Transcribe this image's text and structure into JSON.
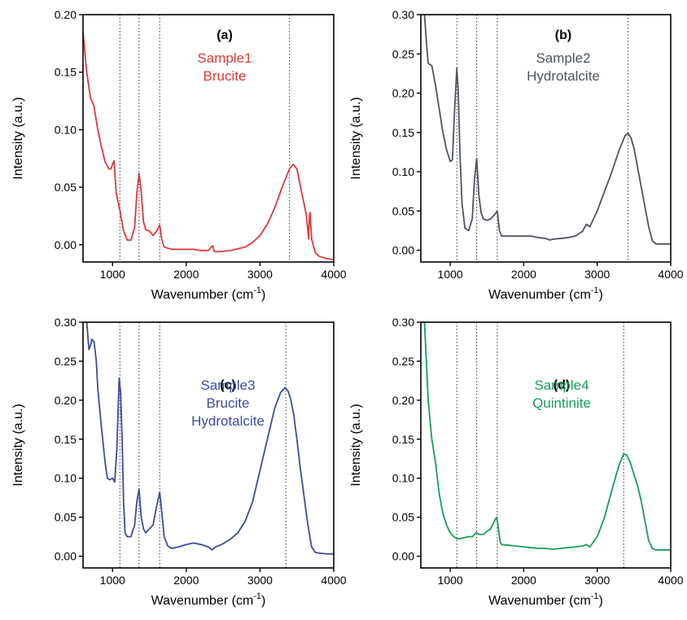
{
  "chart_data": [
    {
      "type": "line",
      "panel_label": "(a)",
      "annotation_lines": [
        "Sample1",
        "Brucite"
      ],
      "color": "#dc3a3a",
      "xlabel": "Wavenumber (cm",
      "xlabel_sup": "-1",
      "xlabel_end": ")",
      "ylabel": "Intensity (a.u.)",
      "xlim": [
        600,
        4000
      ],
      "ylim": [
        -0.015,
        0.2
      ],
      "xticks": [
        1000,
        2000,
        3000,
        4000
      ],
      "yticks": [
        0.0,
        0.05,
        0.1,
        0.15,
        0.2
      ],
      "ytick_labels": [
        "0.00",
        "0.05",
        "0.10",
        "0.15",
        "0.20"
      ],
      "reference_lines": [
        1100,
        1360,
        1640,
        3400
      ],
      "series": [
        {
          "x": [
            600,
            650,
            700,
            750,
            800,
            850,
            900,
            950,
            980,
            1000,
            1020,
            1050,
            1100,
            1150,
            1200,
            1250,
            1300,
            1330,
            1360,
            1390,
            1420,
            1450,
            1500,
            1550,
            1600,
            1640,
            1670,
            1700,
            1800,
            1900,
            2000,
            2100,
            2200,
            2300,
            2340,
            2360,
            2380,
            2450,
            2600,
            2800,
            2900,
            3000,
            3100,
            3200,
            3300,
            3400,
            3450,
            3500,
            3550,
            3600,
            3630,
            3650,
            3660,
            3670,
            3680,
            3700,
            3750,
            3800,
            3900,
            4000
          ],
          "y": [
            0.185,
            0.15,
            0.128,
            0.12,
            0.1,
            0.085,
            0.072,
            0.066,
            0.066,
            0.07,
            0.073,
            0.045,
            0.03,
            0.012,
            0.004,
            0.004,
            0.015,
            0.045,
            0.062,
            0.045,
            0.02,
            0.013,
            0.012,
            0.008,
            0.012,
            0.017,
            0.004,
            -0.002,
            -0.004,
            -0.004,
            -0.004,
            -0.004,
            -0.005,
            -0.005,
            -0.002,
            -0.001,
            -0.006,
            -0.006,
            -0.005,
            -0.002,
            0.002,
            0.008,
            0.018,
            0.032,
            0.05,
            0.066,
            0.07,
            0.066,
            0.05,
            0.035,
            0.025,
            0.012,
            0.005,
            0.025,
            0.028,
            0.005,
            -0.007,
            -0.01,
            -0.012,
            -0.013
          ]
        }
      ]
    },
    {
      "type": "line",
      "panel_label": "(b)",
      "annotation_lines": [
        "Sample2",
        "Hydrotalcite"
      ],
      "color": "#4d5560",
      "xlabel": "Wavenumber (cm",
      "xlabel_sup": "-1",
      "xlabel_end": ")",
      "ylabel": "Intensity (a.u.)",
      "xlim": [
        600,
        4000
      ],
      "ylim": [
        -0.015,
        0.3
      ],
      "xticks": [
        1000,
        2000,
        3000,
        4000
      ],
      "yticks": [
        0.0,
        0.05,
        0.1,
        0.15,
        0.2,
        0.25,
        0.3
      ],
      "ytick_labels": [
        "0.00",
        "0.05",
        "0.10",
        "0.15",
        "0.20",
        "0.25",
        "0.30"
      ],
      "reference_lines": [
        1090,
        1360,
        1640,
        3420
      ],
      "series": [
        {
          "x": [
            650,
            680,
            700,
            750,
            800,
            850,
            900,
            950,
            1000,
            1030,
            1060,
            1090,
            1110,
            1130,
            1160,
            1200,
            1250,
            1300,
            1330,
            1360,
            1390,
            1420,
            1450,
            1500,
            1550,
            1600,
            1640,
            1670,
            1700,
            1800,
            1900,
            2000,
            2100,
            2200,
            2300,
            2350,
            2400,
            2500,
            2600,
            2700,
            2800,
            2850,
            2900,
            3000,
            3100,
            3200,
            3300,
            3380,
            3420,
            3460,
            3500,
            3550,
            3600,
            3650,
            3700,
            3750,
            3800,
            3900,
            4000
          ],
          "y": [
            0.3,
            0.26,
            0.238,
            0.235,
            0.21,
            0.18,
            0.15,
            0.128,
            0.113,
            0.115,
            0.18,
            0.232,
            0.2,
            0.13,
            0.06,
            0.028,
            0.025,
            0.04,
            0.09,
            0.117,
            0.07,
            0.048,
            0.04,
            0.038,
            0.04,
            0.045,
            0.05,
            0.025,
            0.018,
            0.018,
            0.018,
            0.018,
            0.018,
            0.016,
            0.015,
            0.013,
            0.014,
            0.015,
            0.016,
            0.018,
            0.024,
            0.033,
            0.03,
            0.05,
            0.075,
            0.1,
            0.128,
            0.146,
            0.149,
            0.143,
            0.13,
            0.105,
            0.08,
            0.055,
            0.03,
            0.012,
            0.008,
            0.008,
            0.008
          ]
        }
      ]
    },
    {
      "type": "line",
      "panel_label": "(c)",
      "annotation_lines": [
        "Sample3",
        "Brucite",
        "Hydrotalcite"
      ],
      "color": "#3c4a9e",
      "xlabel": "Wavenumber (cm",
      "xlabel_sup": "-1",
      "xlabel_end": ")",
      "ylabel": "Intensity (a.u.)",
      "xlim": [
        600,
        4000
      ],
      "ylim": [
        -0.015,
        0.3
      ],
      "xticks": [
        1000,
        2000,
        3000,
        4000
      ],
      "yticks": [
        0.0,
        0.05,
        0.1,
        0.15,
        0.2,
        0.25,
        0.3
      ],
      "ytick_labels": [
        "0.00",
        "0.05",
        "0.10",
        "0.15",
        "0.20",
        "0.25",
        "0.30"
      ],
      "reference_lines": [
        1100,
        1360,
        1640,
        3350
      ],
      "series": [
        {
          "x": [
            650,
            680,
            700,
            720,
            750,
            780,
            800,
            850,
            900,
            930,
            960,
            1000,
            1030,
            1060,
            1090,
            1110,
            1130,
            1150,
            1170,
            1200,
            1250,
            1300,
            1330,
            1360,
            1390,
            1420,
            1450,
            1500,
            1550,
            1600,
            1640,
            1670,
            1700,
            1750,
            1800,
            1900,
            2000,
            2100,
            2200,
            2300,
            2350,
            2400,
            2500,
            2600,
            2700,
            2800,
            2900,
            3000,
            3100,
            3200,
            3280,
            3340,
            3380,
            3420,
            3460,
            3500,
            3550,
            3600,
            3650,
            3700,
            3750,
            3800,
            3900,
            4000
          ],
          "y": [
            0.3,
            0.265,
            0.27,
            0.278,
            0.275,
            0.25,
            0.215,
            0.165,
            0.12,
            0.1,
            0.098,
            0.1,
            0.095,
            0.14,
            0.228,
            0.21,
            0.15,
            0.07,
            0.03,
            0.025,
            0.025,
            0.04,
            0.07,
            0.086,
            0.05,
            0.035,
            0.03,
            0.035,
            0.04,
            0.065,
            0.082,
            0.055,
            0.025,
            0.013,
            0.01,
            0.012,
            0.015,
            0.017,
            0.015,
            0.012,
            0.008,
            0.012,
            0.016,
            0.022,
            0.03,
            0.045,
            0.07,
            0.11,
            0.15,
            0.19,
            0.21,
            0.216,
            0.212,
            0.2,
            0.18,
            0.15,
            0.11,
            0.075,
            0.04,
            0.012,
            0.005,
            0.004,
            0.003,
            0.003
          ]
        }
      ]
    },
    {
      "type": "line",
      "panel_label": "(d)",
      "annotation_lines": [
        "Sample4",
        "Quintinite"
      ],
      "color": "#179d5b",
      "xlabel": "Wavenumber (cm",
      "xlabel_sup": "-1",
      "xlabel_end": ")",
      "ylabel": "Intensity (a.u.)",
      "xlim": [
        600,
        4000
      ],
      "ylim": [
        -0.015,
        0.3
      ],
      "xticks": [
        1000,
        2000,
        3000,
        4000
      ],
      "yticks": [
        0.0,
        0.05,
        0.1,
        0.15,
        0.2,
        0.25,
        0.3
      ],
      "ytick_labels": [
        "0.00",
        "0.05",
        "0.10",
        "0.15",
        "0.20",
        "0.25",
        "0.30"
      ],
      "reference_lines": [
        1090,
        1360,
        1640,
        3360
      ],
      "series": [
        {
          "x": [
            650,
            680,
            700,
            750,
            800,
            850,
            900,
            950,
            1000,
            1050,
            1100,
            1150,
            1200,
            1250,
            1300,
            1350,
            1400,
            1450,
            1500,
            1550,
            1600,
            1630,
            1650,
            1680,
            1700,
            1800,
            1900,
            2000,
            2100,
            2200,
            2300,
            2400,
            2500,
            2600,
            2700,
            2800,
            2850,
            2900,
            3000,
            3100,
            3200,
            3300,
            3360,
            3400,
            3450,
            3500,
            3550,
            3600,
            3650,
            3700,
            3750,
            3800,
            3900,
            4000
          ],
          "y": [
            0.3,
            0.24,
            0.2,
            0.15,
            0.12,
            0.08,
            0.055,
            0.04,
            0.03,
            0.025,
            0.022,
            0.023,
            0.024,
            0.025,
            0.025,
            0.03,
            0.028,
            0.028,
            0.032,
            0.035,
            0.045,
            0.05,
            0.04,
            0.018,
            0.015,
            0.014,
            0.013,
            0.012,
            0.011,
            0.01,
            0.01,
            0.009,
            0.01,
            0.011,
            0.012,
            0.013,
            0.015,
            0.012,
            0.025,
            0.05,
            0.085,
            0.118,
            0.131,
            0.13,
            0.12,
            0.105,
            0.09,
            0.07,
            0.045,
            0.02,
            0.01,
            0.008,
            0.008,
            0.008
          ]
        }
      ]
    }
  ]
}
